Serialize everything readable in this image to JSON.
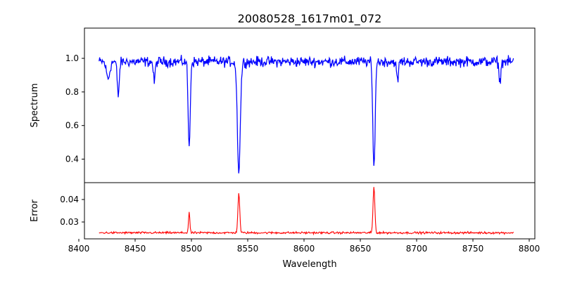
{
  "chart_data": {
    "type": "line",
    "title": "20080528_1617m01_072",
    "xlabel": "Wavelength",
    "xlim": [
      8405,
      8805
    ],
    "xticks": [
      8400,
      8450,
      8500,
      8550,
      8600,
      8650,
      8700,
      8750,
      8800
    ],
    "x_start": 8418,
    "x_end": 8786,
    "panels": [
      {
        "name": "spectrum",
        "ylabel": "Spectrum",
        "ylim": [
          0.26,
          1.18
        ],
        "yticks": [
          0.4,
          0.6,
          0.8,
          1.0
        ],
        "ytick_labels": [
          "0.4",
          "0.6",
          "0.8",
          "1.0"
        ],
        "series": [
          {
            "color": "#0000ff",
            "baseline": 0.98,
            "noise": 0.045,
            "features": [
              {
                "center": 8426,
                "depth": 0.1,
                "width": 1.5
              },
              {
                "center": 8435,
                "depth": 0.2,
                "width": 0.9
              },
              {
                "center": 8467,
                "depth": 0.12,
                "width": 0.8
              },
              {
                "center": 8498.0,
                "depth": 0.52,
                "width": 0.9
              },
              {
                "center": 8542.1,
                "depth": 0.65,
                "width": 1.3
              },
              {
                "center": 8662.1,
                "depth": 0.64,
                "width": 1.0
              },
              {
                "center": 8683,
                "depth": 0.12,
                "width": 0.8
              },
              {
                "center": 8774,
                "depth": 0.12,
                "width": 0.8
              }
            ]
          }
        ]
      },
      {
        "name": "error",
        "ylabel": "Error",
        "ylim": [
          0.0225,
          0.0475
        ],
        "yticks": [
          0.03,
          0.04
        ],
        "ytick_labels": [
          "0.03",
          "0.04"
        ],
        "series": [
          {
            "color": "#ff0000",
            "baseline": 0.0252,
            "noise": 0.0007,
            "features": [
              {
                "center": 8498.0,
                "height": 0.0092,
                "width": 0.6
              },
              {
                "center": 8542.1,
                "height": 0.0178,
                "width": 0.8
              },
              {
                "center": 8662.1,
                "height": 0.0205,
                "width": 0.8
              }
            ]
          }
        ]
      }
    ]
  }
}
